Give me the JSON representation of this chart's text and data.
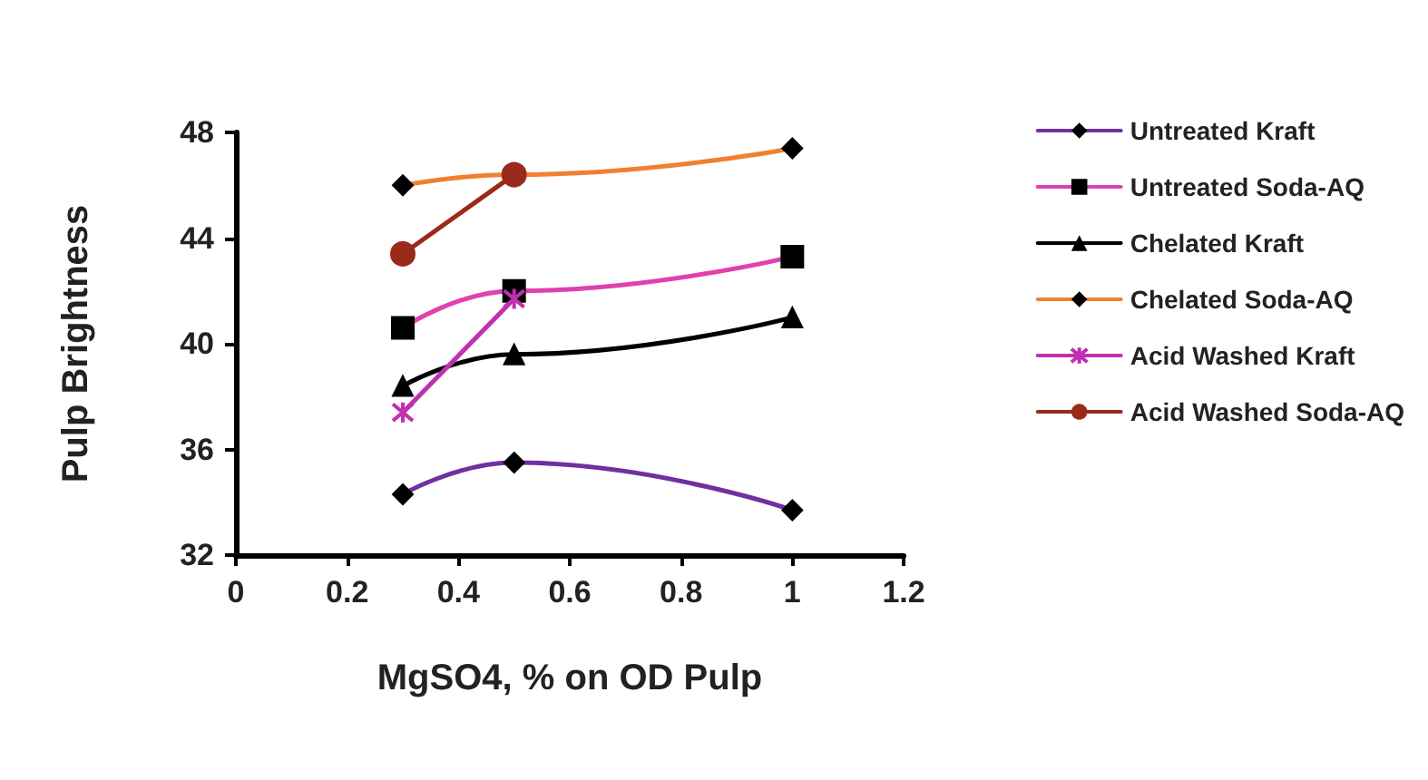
{
  "chart_data": {
    "type": "line",
    "xlabel": "MgSO4, % on OD Pulp",
    "ylabel": "Pulp Brightness",
    "xlim": [
      0,
      1.2
    ],
    "xticks": [
      0,
      0.2,
      0.4,
      0.6,
      0.8,
      1,
      1.2
    ],
    "ylim": [
      32,
      48
    ],
    "yticks": [
      32,
      36,
      40,
      44,
      48
    ],
    "grid": false,
    "legend": "right",
    "series": [
      {
        "name": "Untreated Kraft",
        "color": "#7030a0",
        "marker": "diamond",
        "x": [
          0.3,
          0.5,
          1
        ],
        "values": [
          34.3,
          35.5,
          33.7
        ]
      },
      {
        "name": "Untreated Soda-AQ",
        "color": "#e040b0",
        "marker": "square",
        "x": [
          0.3,
          0.5,
          1
        ],
        "values": [
          40.6,
          42.0,
          43.3
        ]
      },
      {
        "name": "Chelated Kraft",
        "color": "#000000",
        "marker": "triangle",
        "x": [
          0.3,
          0.5,
          1
        ],
        "values": [
          38.4,
          39.6,
          41.0
        ]
      },
      {
        "name": "Chelated Soda-AQ",
        "color": "#f08030",
        "marker": "diamond",
        "x": [
          0.3,
          0.5,
          1
        ],
        "values": [
          46.0,
          46.4,
          47.4
        ]
      },
      {
        "name": "Acid Washed Kraft",
        "color": "#c030b0",
        "marker": "cross",
        "x": [
          0.3,
          0.5
        ],
        "values": [
          37.4,
          41.7
        ]
      },
      {
        "name": "Acid Washed Soda-AQ",
        "color": "#9a2a1a",
        "marker": "circle",
        "x": [
          0.3,
          0.5
        ],
        "values": [
          43.4,
          46.4
        ]
      }
    ]
  }
}
